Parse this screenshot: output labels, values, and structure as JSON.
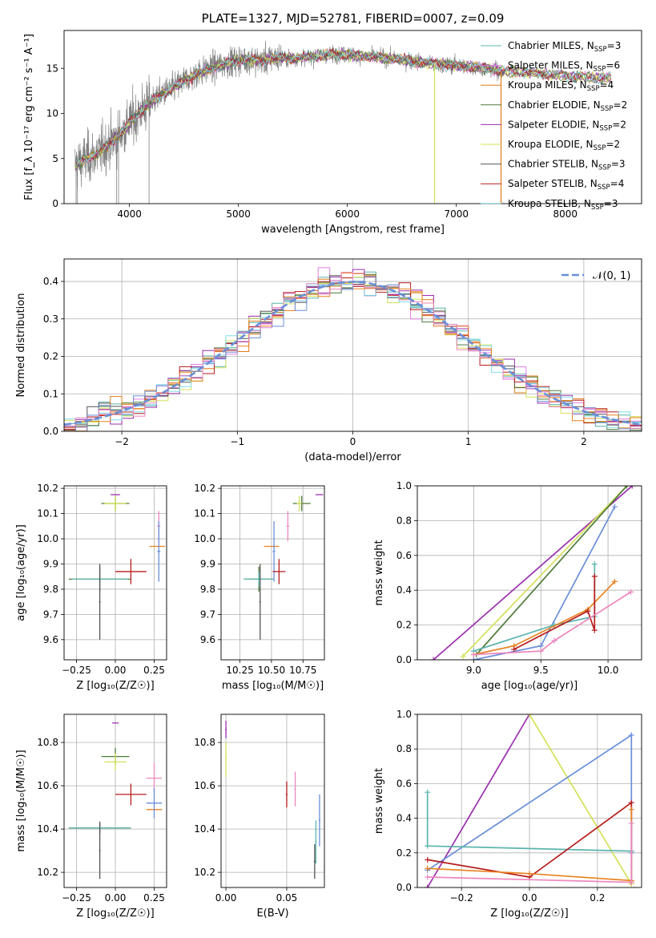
{
  "colors": {
    "Chabrier MILES": "#5ab4ac",
    "Salpeter MILES": "#dd7ee0",
    "Kroupa MILES": "#e07b16",
    "Chabrier ELODIE": "#4f7b3a",
    "Salpeter ELODIE": "#9b2fae",
    "Kroupa ELODIE": "#d4e157",
    "Chabrier STELIB": "#555555",
    "Salpeter STELIB": "#b71c1c",
    "Kroupa STELIB": "#80deea",
    "Kroupa MILES alt": "#e8821e",
    "Chabrier MILES alt": "#6a8fd8",
    "Salpeter MILES alt": "#ec87bf",
    "gauss": "#6a8fd8"
  },
  "chart_data": [
    {
      "id": "spectrum",
      "type": "line",
      "title": "PLATE=1327, MJD=52781, FIBERID=0007, z=0.09",
      "xlabel": "wavelength [Angstrom, rest frame]",
      "ylabel": "Flux [f_λ 10⁻¹⁷ erg cm⁻² s⁻¹ A⁻¹]",
      "xlim": [
        3400,
        8700
      ],
      "ylim": [
        0,
        19.2
      ],
      "xticks": [
        "4000",
        "5000",
        "6000",
        "7000",
        "8000"
      ],
      "yticks": [
        "0",
        "5",
        "10",
        "15"
      ],
      "legend_position": "right",
      "legend": [
        {
          "name": "Chabrier MILES, N_SSP=3",
          "base": "Chabrier MILES, N",
          "sub": "SSP",
          "tail": "=3",
          "color": "#5ab4ac"
        },
        {
          "name": "Salpeter MILES, N_SSP=6",
          "base": "Salpeter MILES, N",
          "sub": "SSP",
          "tail": "=6",
          "color": "#dd7ee0"
        },
        {
          "name": "Kroupa MILES, N_SSP=4",
          "base": "Kroupa MILES, N",
          "sub": "SSP",
          "tail": "=4",
          "color": "#e07b16"
        },
        {
          "name": "Chabrier ELODIE, N_SSP=2",
          "base": "Chabrier ELODIE, N",
          "sub": "SSP",
          "tail": "=2",
          "color": "#4f7b3a"
        },
        {
          "name": "Salpeter ELODIE, N_SSP=2",
          "base": "Salpeter ELODIE, N",
          "sub": "SSP",
          "tail": "=2",
          "color": "#9b2fae"
        },
        {
          "name": "Kroupa ELODIE, N_SSP=2",
          "base": "Kroupa ELODIE, N",
          "sub": "SSP",
          "tail": "=2",
          "color": "#d4e157"
        },
        {
          "name": "Chabrier STELIB, N_SSP=3",
          "base": "Chabrier STELIB, N",
          "sub": "SSP",
          "tail": "=3",
          "color": "#555555"
        },
        {
          "name": "Salpeter STELIB, N_SSP=4",
          "base": "Salpeter STELIB, N",
          "sub": "SSP",
          "tail": "=4",
          "color": "#b71c1c"
        },
        {
          "name": "Kroupa STELIB, N_SSP=3",
          "base": "Kroupa STELIB, N",
          "sub": "SSP",
          "tail": "=3",
          "color": "#80deea"
        }
      ],
      "continuum": [
        [
          3500,
          4.2
        ],
        [
          3600,
          5.0
        ],
        [
          3700,
          5.5
        ],
        [
          3800,
          6.5
        ],
        [
          3900,
          7.5
        ],
        [
          4000,
          9.0
        ],
        [
          4100,
          10.2
        ],
        [
          4200,
          11.3
        ],
        [
          4300,
          12.2
        ],
        [
          4400,
          12.8
        ],
        [
          4500,
          13.6
        ],
        [
          4600,
          14.3
        ],
        [
          4700,
          14.8
        ],
        [
          4800,
          15.2
        ],
        [
          4900,
          15.6
        ],
        [
          5000,
          15.9
        ],
        [
          5100,
          16.0
        ],
        [
          5200,
          15.8
        ],
        [
          5300,
          16.1
        ],
        [
          5400,
          16.2
        ],
        [
          5500,
          16.1
        ],
        [
          5600,
          16.2
        ],
        [
          5700,
          16.3
        ],
        [
          5800,
          16.5
        ],
        [
          5900,
          16.6
        ],
        [
          6000,
          16.5
        ],
        [
          6200,
          16.3
        ],
        [
          6400,
          16.1
        ],
        [
          6600,
          15.8
        ],
        [
          6800,
          15.5
        ],
        [
          7000,
          15.3
        ],
        [
          7200,
          15.1
        ],
        [
          7400,
          14.7
        ],
        [
          7600,
          14.6
        ],
        [
          7800,
          14.4
        ],
        [
          8000,
          14.2
        ],
        [
          8200,
          14.0
        ],
        [
          8400,
          13.9
        ]
      ],
      "observed_range": [
        3500,
        7420
      ],
      "model_range": [
        3500,
        8420
      ],
      "dropouts": [
        {
          "x": 6800,
          "color": "#d4e157"
        },
        {
          "x": 7410,
          "color": "#e07b16"
        }
      ]
    },
    {
      "id": "residuals",
      "type": "line",
      "xlabel": "(data-model)/error",
      "ylabel": "Normed distribution",
      "xlim": [
        -2.5,
        2.5
      ],
      "ylim": [
        0,
        0.46
      ],
      "xticks": [
        "−2",
        "−1",
        "0",
        "1",
        "2"
      ],
      "yticks": [
        "0.0",
        "0.1",
        "0.2",
        "0.3",
        "0.4"
      ],
      "gauss_label": "𝒩(0, 1)",
      "bin_width": 0.1
    },
    {
      "id": "age-vs-Z",
      "type": "scatter",
      "xlabel": "Z [log₁₀(Z/Z☉)]",
      "ylabel": "age  [log₁₀(age/yr)]",
      "xlim": [
        -0.33,
        0.33
      ],
      "ylim": [
        9.52,
        10.21
      ],
      "xticks": [
        "−0.25",
        "0.00",
        "0.25"
      ],
      "yticks": [
        "9.6",
        "9.7",
        "9.8",
        "9.9",
        "10.0",
        "10.1",
        "10.2"
      ],
      "points": [
        {
          "x": 0.0,
          "y": 10.14,
          "xerr": 0.09,
          "yerr": 0.03,
          "color": "#4f7b3a"
        },
        {
          "x": 0.0,
          "y": 10.14,
          "xerr": 0.07,
          "yerr": 0.03,
          "color": "#d4e157"
        },
        {
          "x": 0.0,
          "y": 10.175,
          "xerr": 0.03,
          "yerr": 0.0,
          "color": "#9b2fae"
        },
        {
          "x": 0.28,
          "y": 10.05,
          "xerr": 0.01,
          "yerr": 0.06,
          "color": "#ec87bf"
        },
        {
          "x": 0.27,
          "y": 9.97,
          "xerr": 0.05,
          "yerr": 0.0,
          "color": "#e8821e"
        },
        {
          "x": 0.28,
          "y": 9.95,
          "xerr": 0.01,
          "yerr": 0.12,
          "color": "#6a8fd8"
        },
        {
          "x": 0.1,
          "y": 9.87,
          "xerr": 0.1,
          "yerr": 0.05,
          "color": "#b71c1c"
        },
        {
          "x": -0.1,
          "y": 9.84,
          "xerr": 0.2,
          "yerr": 0.05,
          "color": "#4f7b3a"
        },
        {
          "x": -0.1,
          "y": 9.84,
          "xerr": 0.18,
          "yerr": 0.03,
          "color": "#5ab4ac"
        },
        {
          "x": -0.1,
          "y": 9.75,
          "xerr": 0.0,
          "yerr": 0.15,
          "color": "#555555"
        }
      ]
    },
    {
      "id": "age-vs-mass",
      "type": "scatter",
      "xlabel": "mass [log₁₀(M/M☉)]",
      "ylabel": "",
      "xlim": [
        10.1,
        10.92
      ],
      "ylim": [
        9.52,
        10.21
      ],
      "xticks": [
        "10.25",
        "10.50",
        "10.75"
      ],
      "yticks": [
        "9.6",
        "9.7",
        "9.8",
        "9.9",
        "10.0",
        "10.1",
        "10.2"
      ],
      "points": [
        {
          "x": 10.74,
          "y": 10.14,
          "xerr": 0.07,
          "yerr": 0.03,
          "color": "#4f7b3a"
        },
        {
          "x": 10.72,
          "y": 10.14,
          "xerr": 0.02,
          "yerr": 0.03,
          "color": "#d4e157"
        },
        {
          "x": 10.88,
          "y": 10.175,
          "xerr": 0.03,
          "yerr": 0.0,
          "color": "#9b2fae"
        },
        {
          "x": 10.63,
          "y": 10.05,
          "xerr": 0.01,
          "yerr": 0.06,
          "color": "#ec87bf"
        },
        {
          "x": 10.5,
          "y": 9.97,
          "xerr": 0.06,
          "yerr": 0.0,
          "color": "#e8821e"
        },
        {
          "x": 10.52,
          "y": 9.95,
          "xerr": 0.01,
          "yerr": 0.12,
          "color": "#6a8fd8"
        },
        {
          "x": 10.56,
          "y": 9.87,
          "xerr": 0.05,
          "yerr": 0.05,
          "color": "#b71c1c"
        },
        {
          "x": 10.4,
          "y": 9.84,
          "xerr": 0.12,
          "yerr": 0.05,
          "color": "#4f7b3a"
        },
        {
          "x": 10.4,
          "y": 9.84,
          "xerr": 0.12,
          "yerr": 0.03,
          "color": "#5ab4ac"
        },
        {
          "x": 10.41,
          "y": 9.75,
          "xerr": 0.0,
          "yerr": 0.15,
          "color": "#555555"
        }
      ]
    },
    {
      "id": "weight-vs-age",
      "type": "line",
      "xlabel": "age  [log₁₀(age/yr)]",
      "ylabel": "mass weight",
      "xlim": [
        8.58,
        10.25
      ],
      "ylim": [
        0,
        1
      ],
      "xticks": [
        "9.0",
        "9.5",
        "10.0"
      ],
      "yticks": [
        "0.0",
        "0.2",
        "0.4",
        "0.6",
        "0.8",
        "1.0"
      ],
      "series": [
        {
          "color": "#9b2fae",
          "points": [
            [
              8.7,
              0.0
            ],
            [
              10.18,
              1.0
            ]
          ]
        },
        {
          "color": "#d4e157",
          "points": [
            [
              8.92,
              0.02
            ],
            [
              10.14,
              1.0
            ]
          ]
        },
        {
          "color": "#4f7b3a",
          "points": [
            [
              9.02,
              0.03
            ],
            [
              10.14,
              1.0
            ]
          ]
        },
        {
          "color": "#6a8fd8",
          "points": [
            [
              9.0,
              0.0
            ],
            [
              9.5,
              0.08
            ],
            [
              10.05,
              0.88
            ]
          ]
        },
        {
          "color": "#5ab4ac",
          "points": [
            [
              9.0,
              0.05
            ],
            [
              9.6,
              0.2
            ],
            [
              9.9,
              0.25
            ],
            [
              9.9,
              0.55
            ]
          ]
        },
        {
          "color": "#e8821e",
          "points": [
            [
              9.0,
              0.03
            ],
            [
              9.3,
              0.08
            ],
            [
              9.85,
              0.29
            ],
            [
              10.05,
              0.45
            ]
          ]
        },
        {
          "color": "#b71c1c",
          "points": [
            [
              9.3,
              0.06
            ],
            [
              9.85,
              0.28
            ],
            [
              9.9,
              0.17
            ],
            [
              9.9,
              0.48
            ]
          ]
        },
        {
          "color": "#ec87bf",
          "points": [
            [
              9.0,
              0.03
            ],
            [
              9.5,
              0.05
            ],
            [
              9.6,
              0.11
            ],
            [
              10.17,
              0.39
            ]
          ]
        }
      ]
    },
    {
      "id": "mass-vs-Z",
      "type": "scatter",
      "xlabel": "Z [log₁₀(Z/Z☉)]",
      "ylabel": "mass [log₁₀(M/M☉)]",
      "xlim": [
        -0.33,
        0.33
      ],
      "ylim": [
        10.13,
        10.93
      ],
      "xticks": [
        "−0.25",
        "0.00",
        "0.25"
      ],
      "yticks": [
        "10.2",
        "10.4",
        "10.6",
        "10.8"
      ],
      "points": [
        {
          "x": 0.0,
          "y": 10.735,
          "xerr": 0.09,
          "yerr": 0.04,
          "color": "#4f7b3a"
        },
        {
          "x": 0.0,
          "y": 10.71,
          "xerr": 0.07,
          "yerr": 0.04,
          "color": "#d4e157"
        },
        {
          "x": 0.0,
          "y": 10.89,
          "xerr": 0.02,
          "yerr": 0.0,
          "color": "#9b2fae"
        },
        {
          "x": 0.25,
          "y": 10.635,
          "xerr": 0.05,
          "yerr": 0.07,
          "color": "#ec87bf"
        },
        {
          "x": 0.25,
          "y": 10.49,
          "xerr": 0.05,
          "yerr": 0.0,
          "color": "#e8821e"
        },
        {
          "x": 0.25,
          "y": 10.52,
          "xerr": 0.05,
          "yerr": 0.07,
          "color": "#6a8fd8"
        },
        {
          "x": 0.1,
          "y": 10.56,
          "xerr": 0.1,
          "yerr": 0.05,
          "color": "#b71c1c"
        },
        {
          "x": -0.1,
          "y": 10.405,
          "xerr": 0.2,
          "yerr": 0.03,
          "color": "#4f7b3a"
        },
        {
          "x": -0.1,
          "y": 10.405,
          "xerr": 0.2,
          "yerr": 0.02,
          "color": "#5ab4ac"
        },
        {
          "x": -0.1,
          "y": 10.3,
          "xerr": 0.0,
          "yerr": 0.13,
          "color": "#555555"
        }
      ]
    },
    {
      "id": "mass-vs-EBV",
      "type": "scatter",
      "xlabel": "E(B-V)",
      "ylabel": "",
      "xlim": [
        -0.004,
        0.081
      ],
      "ylim": [
        10.13,
        10.93
      ],
      "xticks": [
        "0.00",
        "0.05"
      ],
      "yticks": [
        "10.2",
        "10.4",
        "10.6",
        "10.8"
      ],
      "points": [
        {
          "x": 0.0,
          "y": 10.86,
          "xerr": 0.0,
          "yerr": 0.04,
          "color": "#9b2fae"
        },
        {
          "x": 0.0,
          "y": 10.72,
          "xerr": 0.0,
          "yerr": 0.08,
          "color": "#d4e157"
        },
        {
          "x": 0.05,
          "y": 10.56,
          "xerr": 0.0,
          "yerr": 0.06,
          "color": "#b71c1c"
        },
        {
          "x": 0.057,
          "y": 10.585,
          "xerr": 0.0,
          "yerr": 0.08,
          "color": "#ec87bf"
        },
        {
          "x": 0.077,
          "y": 10.44,
          "xerr": 0.0,
          "yerr": 0.12,
          "color": "#6a8fd8"
        },
        {
          "x": 0.074,
          "y": 10.34,
          "xerr": 0.0,
          "yerr": 0.1,
          "color": "#5ab4ac"
        },
        {
          "x": 0.073,
          "y": 10.25,
          "xerr": 0.0,
          "yerr": 0.08,
          "color": "#555555"
        }
      ]
    },
    {
      "id": "weight-vs-Z",
      "type": "line",
      "xlabel": "Z [log₁₀(Z/Z☉)]",
      "ylabel": "mass weight",
      "xlim": [
        -0.33,
        0.33
      ],
      "ylim": [
        0,
        1
      ],
      "xticks": [
        "−0.2",
        "0.0",
        "0.2"
      ],
      "yticks": [
        "0.0",
        "0.2",
        "0.4",
        "0.6",
        "0.8",
        "1.0"
      ],
      "series": [
        {
          "color": "#9b2fae",
          "points": [
            [
              -0.3,
              0.0
            ],
            [
              0.0,
              1.0
            ]
          ]
        },
        {
          "color": "#d4e157",
          "points": [
            [
              0.0,
              1.0
            ],
            [
              0.3,
              0.02
            ]
          ]
        },
        {
          "color": "#6a8fd8",
          "points": [
            [
              -0.3,
              0.1
            ],
            [
              0.3,
              0.88
            ],
            [
              0.3,
              0.2
            ]
          ]
        },
        {
          "color": "#5ab4ac",
          "points": [
            [
              -0.3,
              0.55
            ],
            [
              -0.3,
              0.24
            ],
            [
              0.3,
              0.21
            ]
          ]
        },
        {
          "color": "#b71c1c",
          "points": [
            [
              -0.3,
              0.16
            ],
            [
              0.0,
              0.06
            ],
            [
              0.3,
              0.49
            ],
            [
              0.3,
              0.03
            ]
          ]
        },
        {
          "color": "#e8821e",
          "points": [
            [
              -0.3,
              0.11
            ],
            [
              0.0,
              0.08
            ],
            [
              0.3,
              0.04
            ],
            [
              0.3,
              0.45
            ]
          ]
        },
        {
          "color": "#ec87bf",
          "points": [
            [
              -0.3,
              0.06
            ],
            [
              0.3,
              0.03
            ],
            [
              0.3,
              0.37
            ]
          ]
        }
      ]
    }
  ]
}
